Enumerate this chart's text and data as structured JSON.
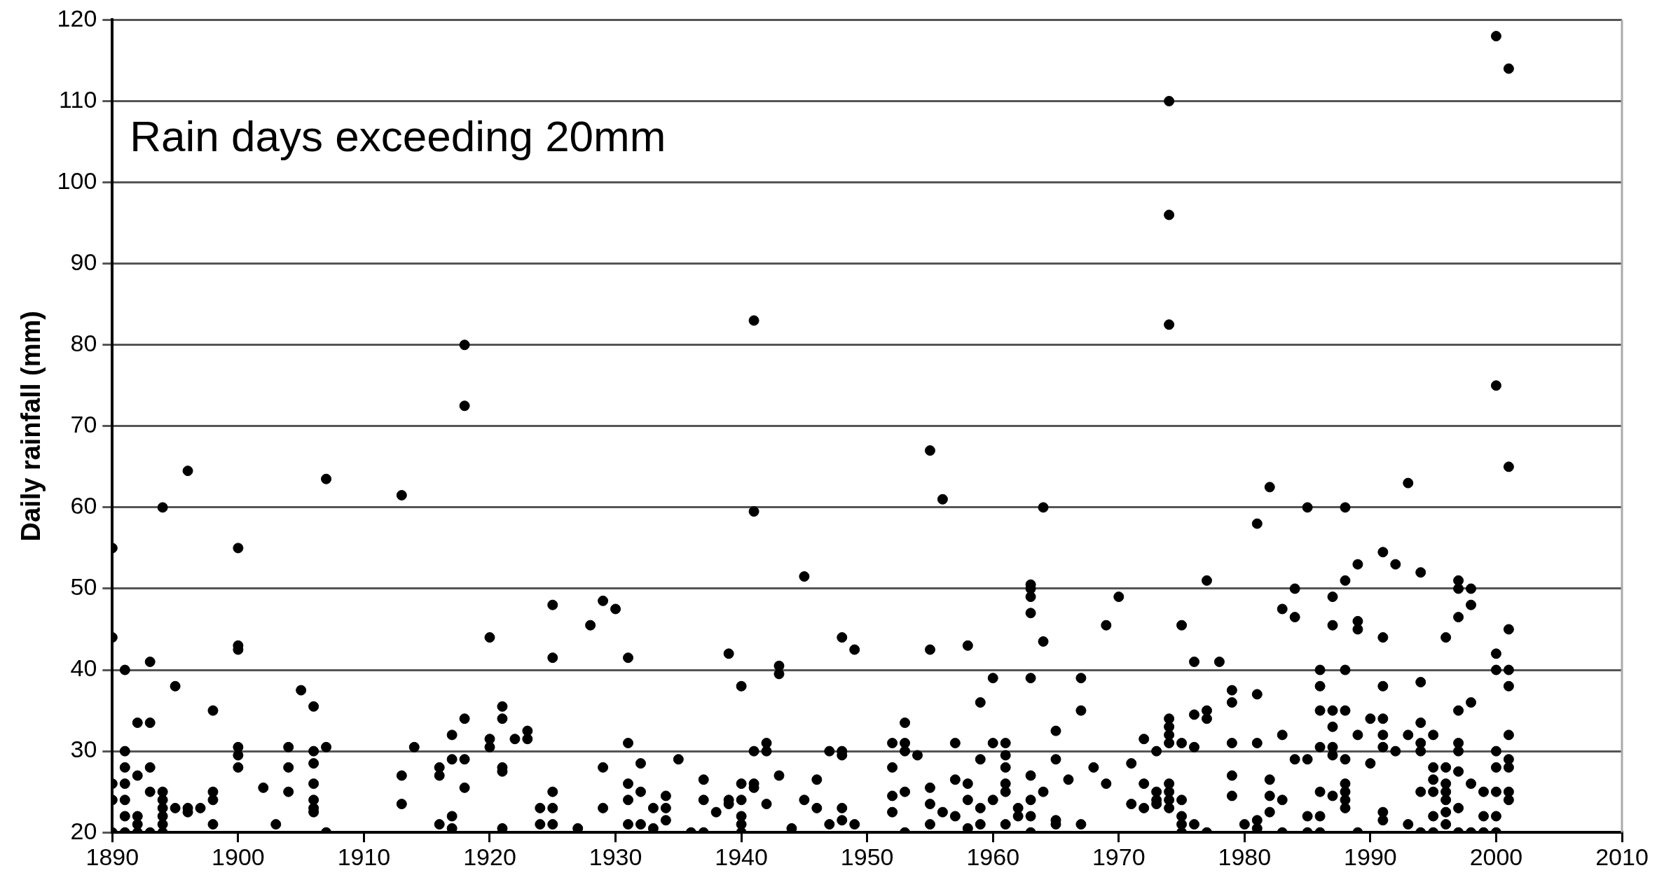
{
  "chart_data": {
    "type": "scatter",
    "ylabel": "Daily rainfall (mm)",
    "annotations": [
      "Rain days exceeding 20mm"
    ],
    "xlim": [
      1890,
      2010
    ],
    "xticks": [
      1890,
      1900,
      1910,
      1920,
      1930,
      1940,
      1950,
      1960,
      1970,
      1980,
      1990,
      2000,
      2010
    ],
    "ylim": [
      20,
      120
    ],
    "yticks": [
      20,
      30,
      40,
      50,
      60,
      70,
      80,
      90,
      100,
      110,
      120
    ],
    "grid": "y",
    "legend": false,
    "marker": "circle",
    "series": [
      {
        "color": "#000000",
        "x": [
          1890,
          1890,
          1890,
          1890,
          1890,
          1891,
          1891,
          1891,
          1891,
          1891,
          1891,
          1891,
          1892,
          1892,
          1892,
          1892,
          1892,
          1893,
          1893,
          1893,
          1893,
          1893,
          1894,
          1894,
          1894,
          1894,
          1894,
          1894,
          1894,
          1895,
          1895,
          1896,
          1896,
          1896,
          1897,
          1898,
          1898,
          1898,
          1898,
          1900,
          1900,
          1900,
          1900,
          1900,
          1900,
          1902,
          1903,
          1904,
          1904,
          1904,
          1905,
          1906,
          1906,
          1906,
          1906,
          1906,
          1906,
          1906,
          1907,
          1907,
          1907,
          1913,
          1913,
          1913,
          1914,
          1916,
          1916,
          1916,
          1917,
          1917,
          1917,
          1917,
          1918,
          1918,
          1918,
          1918,
          1918,
          1920,
          1920,
          1920,
          1921,
          1921,
          1921,
          1921,
          1921,
          1922,
          1923,
          1923,
          1924,
          1924,
          1925,
          1925,
          1925,
          1925,
          1925,
          1927,
          1928,
          1929,
          1929,
          1929,
          1930,
          1931,
          1931,
          1931,
          1931,
          1931,
          1932,
          1932,
          1932,
          1933,
          1933,
          1934,
          1934,
          1934,
          1935,
          1936,
          1937,
          1937,
          1937,
          1938,
          1939,
          1939,
          1939,
          1940,
          1940,
          1940,
          1940,
          1940,
          1940,
          1941,
          1941,
          1941,
          1941,
          1941,
          1942,
          1942,
          1942,
          1943,
          1943,
          1943,
          1944,
          1945,
          1945,
          1946,
          1946,
          1947,
          1947,
          1948,
          1948,
          1948,
          1948,
          1948,
          1949,
          1949,
          1952,
          1952,
          1952,
          1952,
          1953,
          1953,
          1953,
          1953,
          1953,
          1954,
          1955,
          1955,
          1955,
          1955,
          1955,
          1956,
          1956,
          1957,
          1957,
          1957,
          1958,
          1958,
          1958,
          1958,
          1959,
          1959,
          1959,
          1959,
          1960,
          1960,
          1960,
          1961,
          1961,
          1961,
          1961,
          1961,
          1961,
          1962,
          1962,
          1963,
          1963,
          1963,
          1963,
          1963,
          1963,
          1963,
          1963,
          1963,
          1964,
          1964,
          1964,
          1965,
          1965,
          1965,
          1965,
          1966,
          1967,
          1967,
          1967,
          1968,
          1969,
          1969,
          1970,
          1971,
          1971,
          1972,
          1972,
          1972,
          1973,
          1973,
          1973,
          1973,
          1974,
          1974,
          1974,
          1974,
          1974,
          1974,
          1974,
          1974,
          1974,
          1974,
          1974,
          1975,
          1975,
          1975,
          1975,
          1975,
          1975,
          1976,
          1976,
          1976,
          1976,
          1977,
          1977,
          1977,
          1977,
          1978,
          1979,
          1979,
          1979,
          1979,
          1979,
          1980,
          1981,
          1981,
          1981,
          1981,
          1981,
          1982,
          1982,
          1982,
          1982,
          1983,
          1983,
          1983,
          1983,
          1984,
          1984,
          1984,
          1985,
          1985,
          1985,
          1985,
          1986,
          1986,
          1986,
          1986,
          1986,
          1986,
          1986,
          1987,
          1987,
          1987,
          1987,
          1987,
          1987,
          1987,
          1988,
          1988,
          1988,
          1988,
          1988,
          1988,
          1988,
          1988,
          1988,
          1989,
          1989,
          1989,
          1989,
          1989,
          1990,
          1990,
          1991,
          1991,
          1991,
          1991,
          1991,
          1991,
          1991,
          1991,
          1992,
          1992,
          1993,
          1993,
          1993,
          1994,
          1994,
          1994,
          1994,
          1994,
          1994,
          1994,
          1995,
          1995,
          1995,
          1995,
          1995,
          1995,
          1996,
          1996,
          1996,
          1996,
          1996,
          1996,
          1996,
          1997,
          1997,
          1997,
          1997,
          1997,
          1997,
          1997,
          1997,
          1997,
          1998,
          1998,
          1998,
          1998,
          1998,
          1999,
          1999,
          1999,
          2000,
          2000,
          2000,
          2000,
          2000,
          2000,
          2000,
          2000,
          2000,
          2001,
          2001,
          2001,
          2001,
          2001,
          2001,
          2001,
          2001,
          2001,
          2001
        ],
        "values": [
          55,
          44,
          26,
          24,
          20,
          40,
          30,
          28,
          26,
          24,
          22,
          20,
          33.5,
          27,
          22,
          21,
          20,
          41,
          33.5,
          28,
          25,
          20,
          60,
          25,
          24,
          23,
          22,
          21,
          20,
          38,
          23,
          64.5,
          23,
          22.5,
          23,
          35,
          25,
          24,
          21,
          55,
          43,
          42.5,
          30.5,
          29.5,
          28,
          25.5,
          21,
          30.5,
          28,
          25,
          37.5,
          35.5,
          30,
          28.5,
          26,
          24,
          23,
          22.5,
          63.5,
          30.5,
          20,
          61.5,
          27,
          23.5,
          30.5,
          28,
          27,
          21,
          32,
          29,
          22,
          20.5,
          80,
          72.5,
          34,
          29,
          25.5,
          44,
          31.5,
          30.5,
          35.5,
          34,
          28,
          27.5,
          20.5,
          31.5,
          32.5,
          31.5,
          23,
          21,
          48,
          41.5,
          25,
          23,
          21,
          20.5,
          45.5,
          48.5,
          28,
          23,
          47.5,
          41.5,
          31,
          26,
          24,
          21,
          28.5,
          25,
          21,
          23,
          20.5,
          24.5,
          23,
          21.5,
          29,
          20,
          26.5,
          24,
          20,
          22.5,
          42,
          24,
          23.5,
          38,
          26,
          24,
          22,
          21,
          20,
          83,
          59.5,
          30,
          26,
          25.5,
          31,
          30,
          23.5,
          40.5,
          39.5,
          27,
          20.5,
          51.5,
          24,
          26.5,
          23,
          30,
          21,
          44,
          30,
          29.5,
          23,
          21.5,
          42.5,
          21,
          31,
          28,
          24.5,
          22.5,
          33.5,
          31,
          30,
          25,
          20,
          29.5,
          67,
          42.5,
          25.5,
          23.5,
          21,
          61,
          22.5,
          31,
          26.5,
          22,
          43,
          26,
          24,
          20.5,
          36,
          29,
          23,
          21,
          39,
          31,
          24,
          31,
          29.5,
          28,
          26,
          25,
          21,
          23,
          22,
          50.5,
          50,
          49,
          47,
          39,
          27,
          24,
          22,
          20,
          60,
          43.5,
          25,
          32.5,
          29,
          21.5,
          21,
          26.5,
          39,
          35,
          21,
          28,
          45.5,
          26,
          49,
          28.5,
          23.5,
          31.5,
          26,
          23,
          30,
          25,
          24,
          23.5,
          110,
          96,
          82.5,
          34,
          33,
          32,
          31,
          26,
          25,
          24,
          23,
          45.5,
          31,
          24,
          22,
          21,
          20,
          41,
          34.5,
          30.5,
          21,
          51,
          35,
          34,
          20,
          41,
          37.5,
          36,
          31,
          27,
          24.5,
          21,
          58,
          37,
          31,
          21.5,
          20.5,
          62.5,
          26.5,
          24.5,
          22.5,
          47.5,
          32,
          24,
          20,
          50,
          46.5,
          29,
          60,
          29,
          22,
          20,
          40,
          38,
          35,
          30.5,
          25,
          22,
          20,
          49,
          45.5,
          35,
          33,
          30.5,
          29.5,
          24.5,
          60,
          51,
          40,
          35,
          29,
          26,
          25,
          24,
          23,
          53,
          46,
          45,
          32,
          20,
          34,
          28.5,
          54.5,
          44,
          38,
          34,
          32,
          30.5,
          22.5,
          21.5,
          53,
          30,
          63,
          32,
          21,
          52,
          38.5,
          33.5,
          31,
          30,
          25,
          20,
          32,
          28,
          26.5,
          25,
          22,
          20,
          44,
          28,
          26,
          25,
          24,
          22.5,
          21,
          51,
          50,
          46.5,
          35,
          31,
          30,
          27.5,
          23,
          20,
          50,
          48,
          36,
          26,
          20,
          25,
          22,
          20,
          118,
          75,
          42,
          40,
          30,
          28,
          25,
          22,
          20,
          114,
          65,
          45,
          40,
          38,
          32,
          29,
          28,
          25,
          24
        ]
      }
    ]
  }
}
